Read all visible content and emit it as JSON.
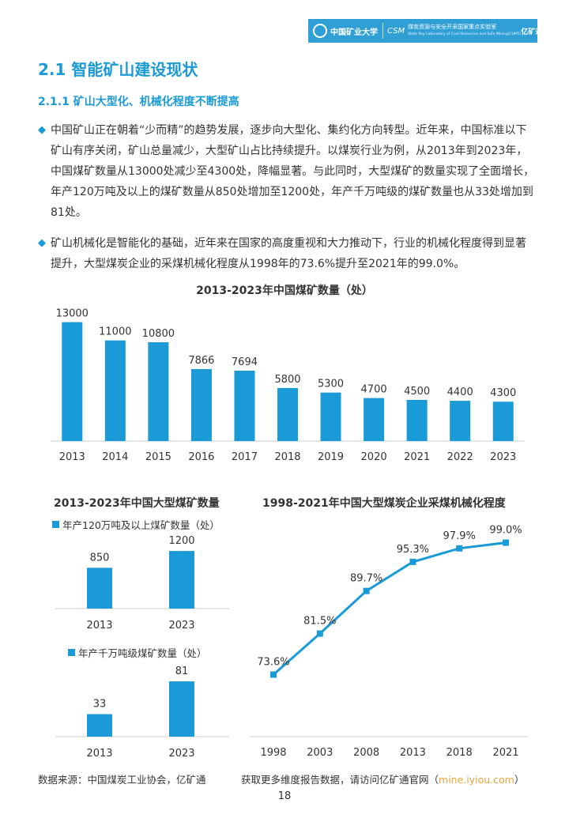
{
  "header": {
    "university": "中国矿业大学",
    "csm": "CSM",
    "lab_cn": "煤炭资源与安全开采国家重点实验室",
    "lab_en": "State Key Laboratory of Coal Resources and Safe Mining(CUMT)",
    "brand": "亿矿通"
  },
  "section_title": "2.1 智能矿山建设现状",
  "subsection_title": "2.1.1 矿山大型化、机械化程度不断提高",
  "bullet_glyph": "◆",
  "paragraphs": [
    "中国矿山正在朝着“少而精”的趋势发展，逐步向大型化、集约化方向转型。近年来，中国标准以下矿山有序关闭，矿山总量减少，大型矿山占比持续提升。以煤炭行业为例，从2013年到2023年，中国煤矿数量从13000处减少至4300处，降幅显著。与此同时，大型煤矿的数量实现了全面增长，年产120万吨及以上的煤矿数量从850处增加至1200处，年产千万吨级的煤矿数量也从33处增加到81处。",
    "矿山机械化是智能化的基础，近年来在国家的高度重视和大力推动下，行业的机械化程度得到显著提升，大型煤炭企业的采煤机械化程度从1998年的73.6%提升至2021年的99.0%。"
  ],
  "chart_data": [
    {
      "type": "bar",
      "title": "2013-2023年中国煤矿数量（处）",
      "categories": [
        "2013",
        "2014",
        "2015",
        "2016",
        "2017",
        "2018",
        "2019",
        "2020",
        "2021",
        "2022",
        "2023"
      ],
      "values": [
        13000,
        11000,
        10800,
        7866,
        7694,
        5800,
        5300,
        4700,
        4500,
        4400,
        4300
      ],
      "ylim": [
        0,
        14000
      ],
      "color": "#1a9ad6"
    },
    {
      "type": "bar",
      "title": "2013-2023年中国大型煤矿数量",
      "series": [
        {
          "name": "年产120万吨及以上煤矿数量（处）",
          "categories": [
            "2013",
            "2023"
          ],
          "values": [
            850,
            1200
          ]
        },
        {
          "name": "年产千万吨级煤矿数量（处）",
          "categories": [
            "2013",
            "2023"
          ],
          "values": [
            33,
            81
          ]
        }
      ],
      "color": "#1a9ad6"
    },
    {
      "type": "line",
      "title": "1998-2021年中国大型煤炭企业采煤机械化程度",
      "x": [
        "1998",
        "2003",
        "2008",
        "2013",
        "2018",
        "2021"
      ],
      "values": [
        73.6,
        81.5,
        89.7,
        95.3,
        97.9,
        99.0
      ],
      "labels": [
        "73.6%",
        "81.5%",
        "89.7%",
        "95.3%",
        "97.9%",
        "99.0%"
      ],
      "ylim": [
        65,
        100
      ],
      "color": "#1a9ad6"
    }
  ],
  "footer": {
    "source": "数据来源：中国煤炭工业协会，亿矿通",
    "more_prefix": "获取更多维度报告数据，请访问亿矿通官网（",
    "url": "mine.iyiou.com",
    "more_suffix": "）"
  },
  "page_number": "18"
}
